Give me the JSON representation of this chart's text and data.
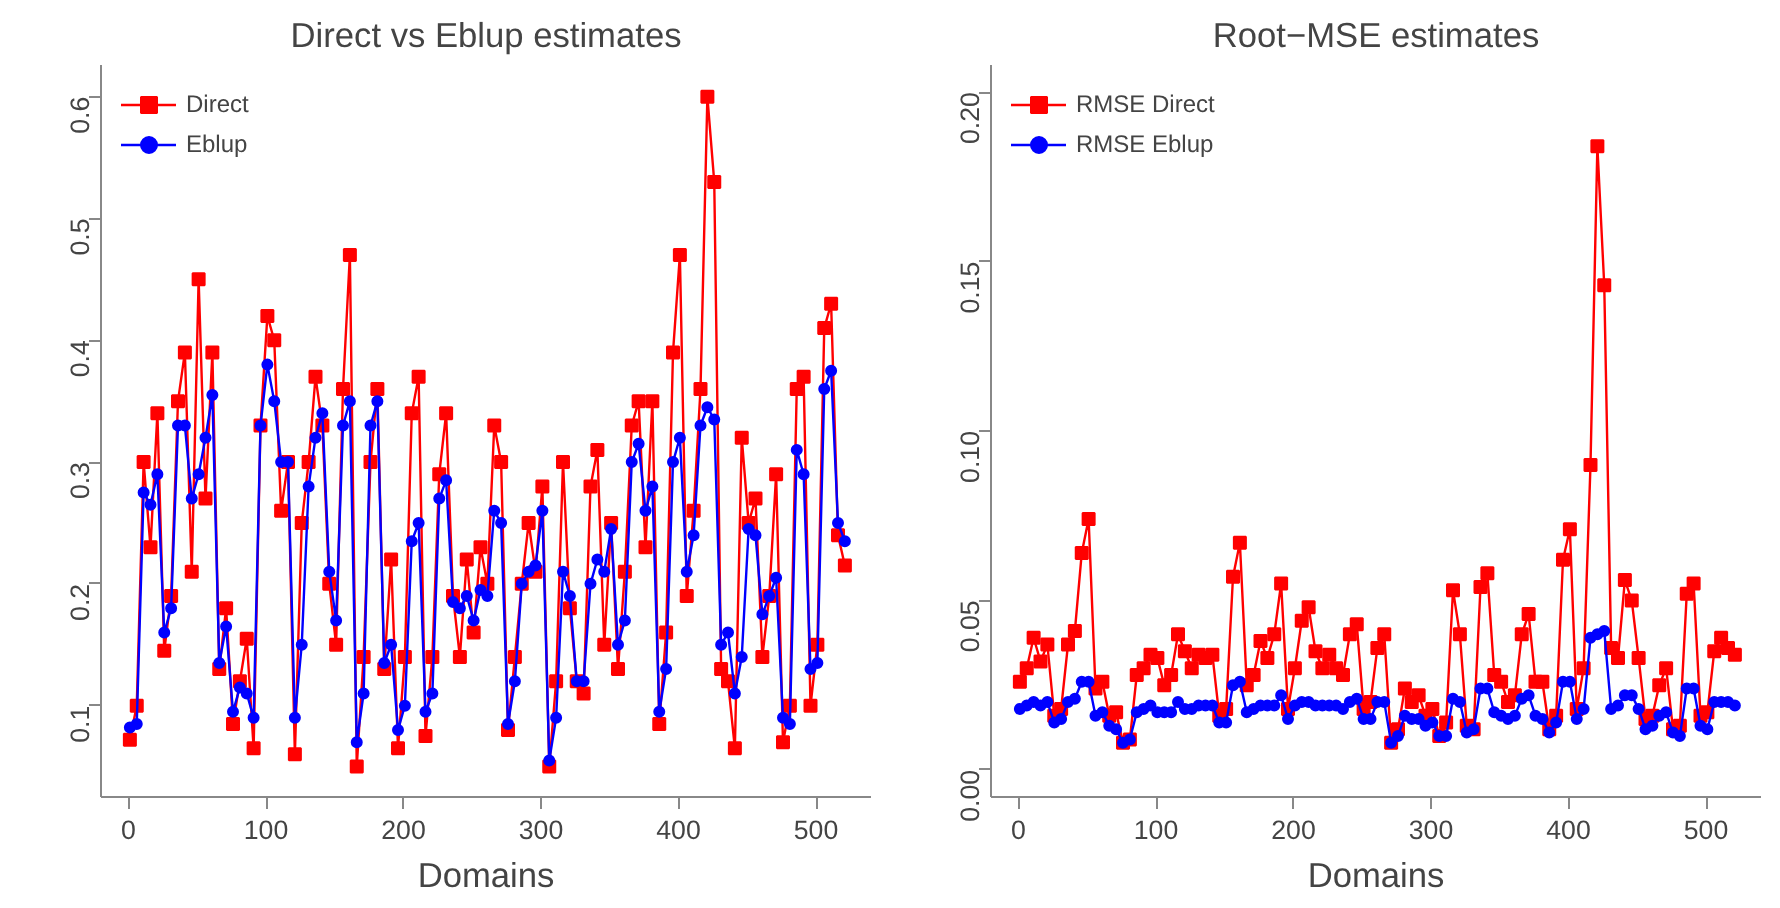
{
  "chart_data": [
    {
      "type": "line",
      "title": "Direct vs Eblup estimates",
      "xlabel": "Domains",
      "legend": "top left",
      "x": [
        1,
        6,
        11,
        16,
        21,
        26,
        31,
        36,
        41,
        46,
        51,
        56,
        61,
        66,
        71,
        76,
        81,
        86,
        91,
        96,
        101,
        106,
        111,
        116,
        121,
        126,
        131,
        136,
        141,
        146,
        151,
        156,
        161,
        166,
        171,
        176,
        181,
        186,
        191,
        196,
        201,
        206,
        211,
        216,
        221,
        226,
        231,
        236,
        241,
        246,
        251,
        256,
        261,
        266,
        271,
        276,
        281,
        286,
        291,
        296,
        301,
        306,
        311,
        316,
        321,
        326,
        331,
        336,
        341,
        346,
        351,
        356,
        361,
        366,
        371,
        376,
        381,
        386,
        391,
        396,
        401,
        406,
        411,
        416,
        421,
        426,
        431,
        436,
        441,
        446,
        451,
        456,
        461,
        466,
        471,
        476,
        481,
        486,
        491,
        496,
        501,
        506,
        511,
        516,
        521
      ],
      "xlim": [
        -20,
        540
      ],
      "xticks": [
        0,
        100,
        200,
        300,
        400,
        500
      ],
      "ylim": [
        0.025,
        0.626
      ],
      "yticks": [
        0.1,
        0.2,
        0.3,
        0.4,
        0.5,
        0.6
      ],
      "series": [
        {
          "name": "Direct",
          "color": "#ff0000",
          "marker": "square",
          "values": [
            0.072,
            0.1,
            0.3,
            0.23,
            0.34,
            0.145,
            0.19,
            0.35,
            0.39,
            0.21,
            0.45,
            0.27,
            0.39,
            0.13,
            0.18,
            0.085,
            0.12,
            0.155,
            0.065,
            0.33,
            0.42,
            0.4,
            0.26,
            0.3,
            0.06,
            0.25,
            0.3,
            0.37,
            0.33,
            0.2,
            0.15,
            0.36,
            0.47,
            0.05,
            0.14,
            0.3,
            0.36,
            0.13,
            0.22,
            0.065,
            0.14,
            0.34,
            0.37,
            0.075,
            0.14,
            0.29,
            0.34,
            0.19,
            0.14,
            0.22,
            0.16,
            0.23,
            0.2,
            0.33,
            0.3,
            0.08,
            0.14,
            0.2,
            0.25,
            0.21,
            0.28,
            0.05,
            0.12,
            0.3,
            0.18,
            0.12,
            0.11,
            0.28,
            0.31,
            0.15,
            0.25,
            0.13,
            0.21,
            0.33,
            0.35,
            0.23,
            0.35,
            0.085,
            0.16,
            0.39,
            0.47,
            0.19,
            0.26,
            0.36,
            0.6,
            0.53,
            0.13,
            0.12,
            0.065,
            0.32,
            0.25,
            0.27,
            0.14,
            0.19,
            0.29,
            0.07,
            0.1,
            0.36,
            0.37,
            0.1,
            0.15,
            0.41,
            0.43,
            0.24,
            0.215
          ]
        },
        {
          "name": "Eblup",
          "color": "#0000ff",
          "marker": "circle",
          "values": [
            0.082,
            0.085,
            0.275,
            0.265,
            0.29,
            0.16,
            0.18,
            0.33,
            0.33,
            0.27,
            0.29,
            0.32,
            0.355,
            0.135,
            0.165,
            0.095,
            0.115,
            0.11,
            0.09,
            0.33,
            0.38,
            0.35,
            0.3,
            0.3,
            0.09,
            0.15,
            0.28,
            0.32,
            0.34,
            0.21,
            0.17,
            0.33,
            0.35,
            0.07,
            0.11,
            0.33,
            0.35,
            0.135,
            0.15,
            0.08,
            0.1,
            0.235,
            0.25,
            0.095,
            0.11,
            0.27,
            0.285,
            0.185,
            0.18,
            0.19,
            0.17,
            0.195,
            0.19,
            0.26,
            0.25,
            0.085,
            0.12,
            0.2,
            0.21,
            0.215,
            0.26,
            0.055,
            0.09,
            0.21,
            0.19,
            0.12,
            0.12,
            0.2,
            0.22,
            0.21,
            0.245,
            0.15,
            0.17,
            0.3,
            0.315,
            0.26,
            0.28,
            0.095,
            0.13,
            0.3,
            0.32,
            0.21,
            0.24,
            0.33,
            0.345,
            0.335,
            0.15,
            0.16,
            0.11,
            0.14,
            0.245,
            0.24,
            0.175,
            0.19,
            0.205,
            0.09,
            0.085,
            0.31,
            0.29,
            0.13,
            0.135,
            0.36,
            0.375,
            0.25,
            0.235
          ]
        }
      ]
    },
    {
      "type": "line",
      "title": "Root−MSE estimates",
      "xlabel": "Domains",
      "legend": "top left",
      "x": [
        1,
        6,
        11,
        16,
        21,
        26,
        31,
        36,
        41,
        46,
        51,
        56,
        61,
        66,
        71,
        76,
        81,
        86,
        91,
        96,
        101,
        106,
        111,
        116,
        121,
        126,
        131,
        136,
        141,
        146,
        151,
        156,
        161,
        166,
        171,
        176,
        181,
        186,
        191,
        196,
        201,
        206,
        211,
        216,
        221,
        226,
        231,
        236,
        241,
        246,
        251,
        256,
        261,
        266,
        271,
        276,
        281,
        286,
        291,
        296,
        301,
        306,
        311,
        316,
        321,
        326,
        331,
        336,
        341,
        346,
        351,
        356,
        361,
        366,
        371,
        376,
        381,
        386,
        391,
        396,
        401,
        406,
        411,
        416,
        421,
        426,
        431,
        436,
        441,
        446,
        451,
        456,
        461,
        466,
        471,
        476,
        481,
        486,
        491,
        496,
        501,
        506,
        511,
        516,
        521
      ],
      "xlim": [
        -20,
        540
      ],
      "xticks": [
        0,
        100,
        200,
        300,
        400,
        500
      ],
      "ylim": [
        -0.008,
        0.208
      ],
      "yticks": [
        {
          "value": 0,
          "label": "0.00"
        },
        {
          "value": 0.05,
          "label": "0.05"
        },
        {
          "value": 0.1,
          "label": "0.10"
        },
        {
          "value": 0.15,
          "label": "0.15"
        },
        {
          "value": 0.2,
          "label": "0.20"
        }
      ],
      "series": [
        {
          "name": "RMSE Direct",
          "color": "#ff0000",
          "marker": "square",
          "values": [
            0.026,
            0.03,
            0.039,
            0.032,
            0.037,
            0.016,
            0.018,
            0.037,
            0.041,
            0.064,
            0.074,
            0.024,
            0.026,
            0.016,
            0.017,
            0.008,
            0.009,
            0.028,
            0.03,
            0.034,
            0.033,
            0.025,
            0.028,
            0.04,
            0.035,
            0.03,
            0.034,
            0.033,
            0.034,
            0.016,
            0.018,
            0.057,
            0.067,
            0.025,
            0.028,
            0.038,
            0.033,
            0.04,
            0.055,
            0.018,
            0.03,
            0.044,
            0.048,
            0.035,
            0.03,
            0.034,
            0.03,
            0.028,
            0.04,
            0.043,
            0.018,
            0.02,
            0.036,
            0.04,
            0.008,
            0.012,
            0.024,
            0.02,
            0.022,
            0.016,
            0.018,
            0.01,
            0.014,
            0.053,
            0.04,
            0.013,
            0.012,
            0.054,
            0.058,
            0.028,
            0.026,
            0.02,
            0.022,
            0.04,
            0.046,
            0.026,
            0.026,
            0.012,
            0.016,
            0.062,
            0.071,
            0.018,
            0.03,
            0.09,
            0.184,
            0.143,
            0.036,
            0.033,
            0.056,
            0.05,
            0.033,
            0.015,
            0.016,
            0.025,
            0.03,
            0.012,
            0.013,
            0.052,
            0.055,
            0.016,
            0.017,
            0.035,
            0.039,
            0.036,
            0.034
          ]
        },
        {
          "name": "RMSE Eblup",
          "color": "#0000ff",
          "marker": "circle",
          "values": [
            0.018,
            0.019,
            0.02,
            0.019,
            0.02,
            0.014,
            0.015,
            0.02,
            0.021,
            0.026,
            0.026,
            0.016,
            0.017,
            0.013,
            0.012,
            0.008,
            0.009,
            0.017,
            0.018,
            0.019,
            0.017,
            0.017,
            0.017,
            0.02,
            0.018,
            0.018,
            0.019,
            0.019,
            0.019,
            0.014,
            0.014,
            0.025,
            0.026,
            0.017,
            0.018,
            0.019,
            0.019,
            0.019,
            0.022,
            0.015,
            0.019,
            0.02,
            0.02,
            0.019,
            0.019,
            0.019,
            0.019,
            0.018,
            0.02,
            0.021,
            0.015,
            0.015,
            0.02,
            0.02,
            0.008,
            0.01,
            0.016,
            0.015,
            0.015,
            0.013,
            0.014,
            0.01,
            0.01,
            0.021,
            0.02,
            0.011,
            0.012,
            0.024,
            0.024,
            0.017,
            0.016,
            0.015,
            0.016,
            0.021,
            0.022,
            0.016,
            0.015,
            0.011,
            0.014,
            0.026,
            0.026,
            0.015,
            0.018,
            0.039,
            0.04,
            0.041,
            0.018,
            0.019,
            0.022,
            0.022,
            0.018,
            0.012,
            0.013,
            0.016,
            0.017,
            0.011,
            0.01,
            0.024,
            0.024,
            0.013,
            0.012,
            0.02,
            0.02,
            0.02,
            0.019
          ]
        }
      ]
    }
  ]
}
